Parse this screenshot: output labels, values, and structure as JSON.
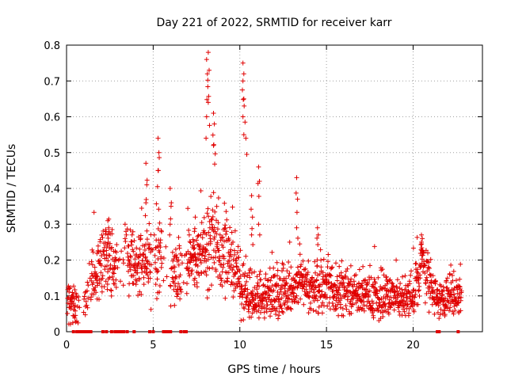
{
  "chart_data": {
    "type": "scatter",
    "title": "Day 221 of 2022, SRMTID for receiver karr",
    "xlabel": "GPS time / hours",
    "ylabel": "SRMTID / TECUs",
    "xlim": [
      0,
      24
    ],
    "ylim": [
      0,
      0.8
    ],
    "x_ticks": [
      0,
      5,
      10,
      15,
      20
    ],
    "y_ticks": [
      0,
      0.1,
      0.2,
      0.3,
      0.4,
      0.5,
      0.6,
      0.7,
      0.8
    ],
    "x_tick_labels": [
      "0",
      "5",
      "10",
      "15",
      "20"
    ],
    "y_tick_labels": [
      "0",
      "0.1",
      "0.2",
      "0.3",
      "0.4",
      "0.5",
      "0.6",
      "0.7",
      "0.8"
    ],
    "grid": true,
    "marker": "+",
    "series_color": "#e00000",
    "series": [
      {
        "name": "SRMTID",
        "envelope_hours": [
          0,
          0.5,
          1.0,
          1.5,
          2.0,
          2.5,
          3.0,
          3.5,
          4.0,
          4.5,
          5.0,
          5.5,
          6.0,
          6.5,
          7.0,
          7.5,
          8.0,
          8.5,
          9.0,
          9.5,
          10.0,
          10.5,
          11.0,
          11.5,
          12.0,
          12.5,
          13.0,
          13.5,
          14.0,
          14.5,
          15.0,
          15.5,
          16.0,
          16.5,
          17.0,
          17.5,
          18.0,
          18.5,
          19.0,
          19.5,
          20.0,
          20.5,
          21.0,
          21.5,
          22.0,
          22.5,
          22.8
        ],
        "envelope_base": [
          0.08,
          0.07,
          0.09,
          0.14,
          0.19,
          0.2,
          0.18,
          0.2,
          0.17,
          0.19,
          0.2,
          0.22,
          0.16,
          0.17,
          0.21,
          0.2,
          0.22,
          0.26,
          0.22,
          0.2,
          0.14,
          0.1,
          0.1,
          0.11,
          0.1,
          0.12,
          0.11,
          0.15,
          0.12,
          0.14,
          0.13,
          0.12,
          0.12,
          0.11,
          0.1,
          0.1,
          0.09,
          0.1,
          0.09,
          0.09,
          0.1,
          0.2,
          0.12,
          0.09,
          0.1,
          0.1,
          0.1
        ],
        "envelope_spread": [
          0.04,
          0.04,
          0.03,
          0.06,
          0.06,
          0.06,
          0.05,
          0.05,
          0.05,
          0.06,
          0.07,
          0.07,
          0.06,
          0.06,
          0.05,
          0.05,
          0.06,
          0.08,
          0.08,
          0.06,
          0.06,
          0.05,
          0.04,
          0.04,
          0.04,
          0.04,
          0.04,
          0.05,
          0.04,
          0.05,
          0.05,
          0.04,
          0.04,
          0.04,
          0.04,
          0.04,
          0.04,
          0.04,
          0.04,
          0.03,
          0.04,
          0.05,
          0.04,
          0.03,
          0.04,
          0.04,
          0.03
        ],
        "spikes": [
          {
            "x": 2.4,
            "values": [
              0.27,
              0.29,
              0.31
            ]
          },
          {
            "x": 3.4,
            "values": [
              0.26,
              0.28,
              0.3
            ]
          },
          {
            "x": 4.6,
            "values": [
              0.36,
              0.41,
              0.47
            ]
          },
          {
            "x": 5.3,
            "values": [
              0.45,
              0.5,
              0.54
            ]
          },
          {
            "x": 6.0,
            "values": [
              0.3,
              0.35,
              0.4
            ]
          },
          {
            "x": 7.4,
            "values": [
              0.28,
              0.32
            ]
          },
          {
            "x": 8.1,
            "values": [
              0.6,
              0.72,
              0.76
            ]
          },
          {
            "x": 8.2,
            "values": [
              0.78,
              0.73,
              0.64
            ]
          },
          {
            "x": 8.5,
            "values": [
              0.61,
              0.58,
              0.52
            ]
          },
          {
            "x": 10.2,
            "values": [
              0.75,
              0.72,
              0.7,
              0.65,
              0.6,
              0.55
            ]
          },
          {
            "x": 10.7,
            "values": [
              0.38,
              0.32,
              0.27
            ]
          },
          {
            "x": 11.1,
            "values": [
              0.46,
              0.42,
              0.3
            ]
          },
          {
            "x": 13.3,
            "values": [
              0.43,
              0.37,
              0.29
            ]
          },
          {
            "x": 14.5,
            "values": [
              0.29,
              0.27
            ]
          },
          {
            "x": 20.5,
            "values": [
              0.27,
              0.26,
              0.25
            ]
          }
        ],
        "gaps_hours": [
          [
            0.6,
            1.4
          ],
          [
            2.9,
            3.5
          ],
          [
            4.9,
            5.1
          ],
          [
            5.5,
            6.1
          ],
          [
            6.6,
            6.9
          ]
        ],
        "gap_marks_at_zero": [
          0.4,
          0.6,
          0.7,
          0.8,
          0.9,
          1.0,
          1.1,
          1.2,
          1.3,
          1.4,
          2.1,
          2.3,
          2.6,
          2.8,
          2.9,
          3.0,
          3.1,
          3.2,
          3.3,
          3.5,
          3.9,
          4.8,
          5.0,
          5.6,
          5.7,
          5.8,
          5.9,
          6.0,
          6.6,
          6.8,
          6.9,
          21.4,
          21.5,
          22.6
        ]
      }
    ]
  }
}
